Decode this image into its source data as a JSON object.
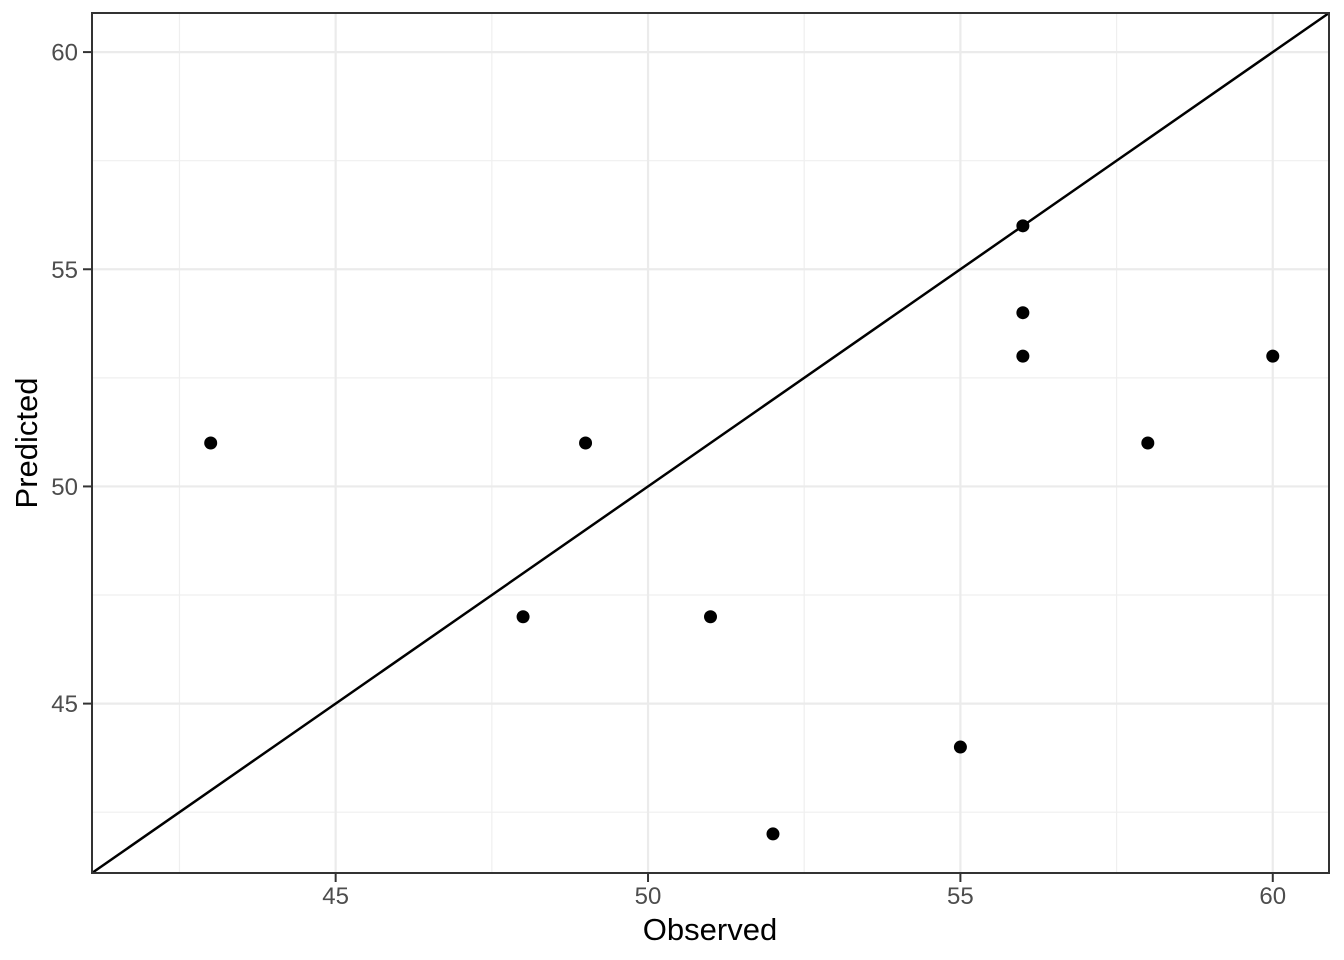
{
  "figure": {
    "background": "#FFFFFF"
  },
  "chart_data": {
    "type": "scatter",
    "title": "",
    "xlabel": "Observed",
    "ylabel": "Predicted",
    "points": [
      {
        "x": 43,
        "y": 51
      },
      {
        "x": 48,
        "y": 47
      },
      {
        "x": 49,
        "y": 51
      },
      {
        "x": 51,
        "y": 47
      },
      {
        "x": 52,
        "y": 42
      },
      {
        "x": 55,
        "y": 44
      },
      {
        "x": 56,
        "y": 53
      },
      {
        "x": 56,
        "y": 54
      },
      {
        "x": 56,
        "y": 56
      },
      {
        "x": 58,
        "y": 51
      },
      {
        "x": 60,
        "y": 53
      }
    ],
    "x_ticks": [
      45,
      50,
      55,
      60
    ],
    "y_ticks": [
      45,
      50,
      55,
      60
    ],
    "x_minor_ticks": [
      42.5,
      47.5,
      52.5,
      57.5
    ],
    "y_minor_ticks": [
      42.5,
      47.5,
      52.5,
      57.5
    ],
    "xlim": [
      41.1,
      60.9
    ],
    "ylim": [
      41.1,
      60.9
    ],
    "reference_line": {
      "type": "identity",
      "slope": 1,
      "intercept": 0
    },
    "grid": "major-and-minor",
    "legend_position": "none",
    "point_radius_px": 6.5,
    "colors": {
      "background": "#FFFFFF",
      "panel_background": "#FFFFFF",
      "grid_major": "#EBEBEB",
      "grid_minor": "#EFEFEF",
      "panel_border": "#333333",
      "tick_mark": "#333333",
      "tick_label": "#4D4D4D",
      "axis_title": "#000000",
      "point": "#000000",
      "reference_line_color": "#000000"
    }
  }
}
